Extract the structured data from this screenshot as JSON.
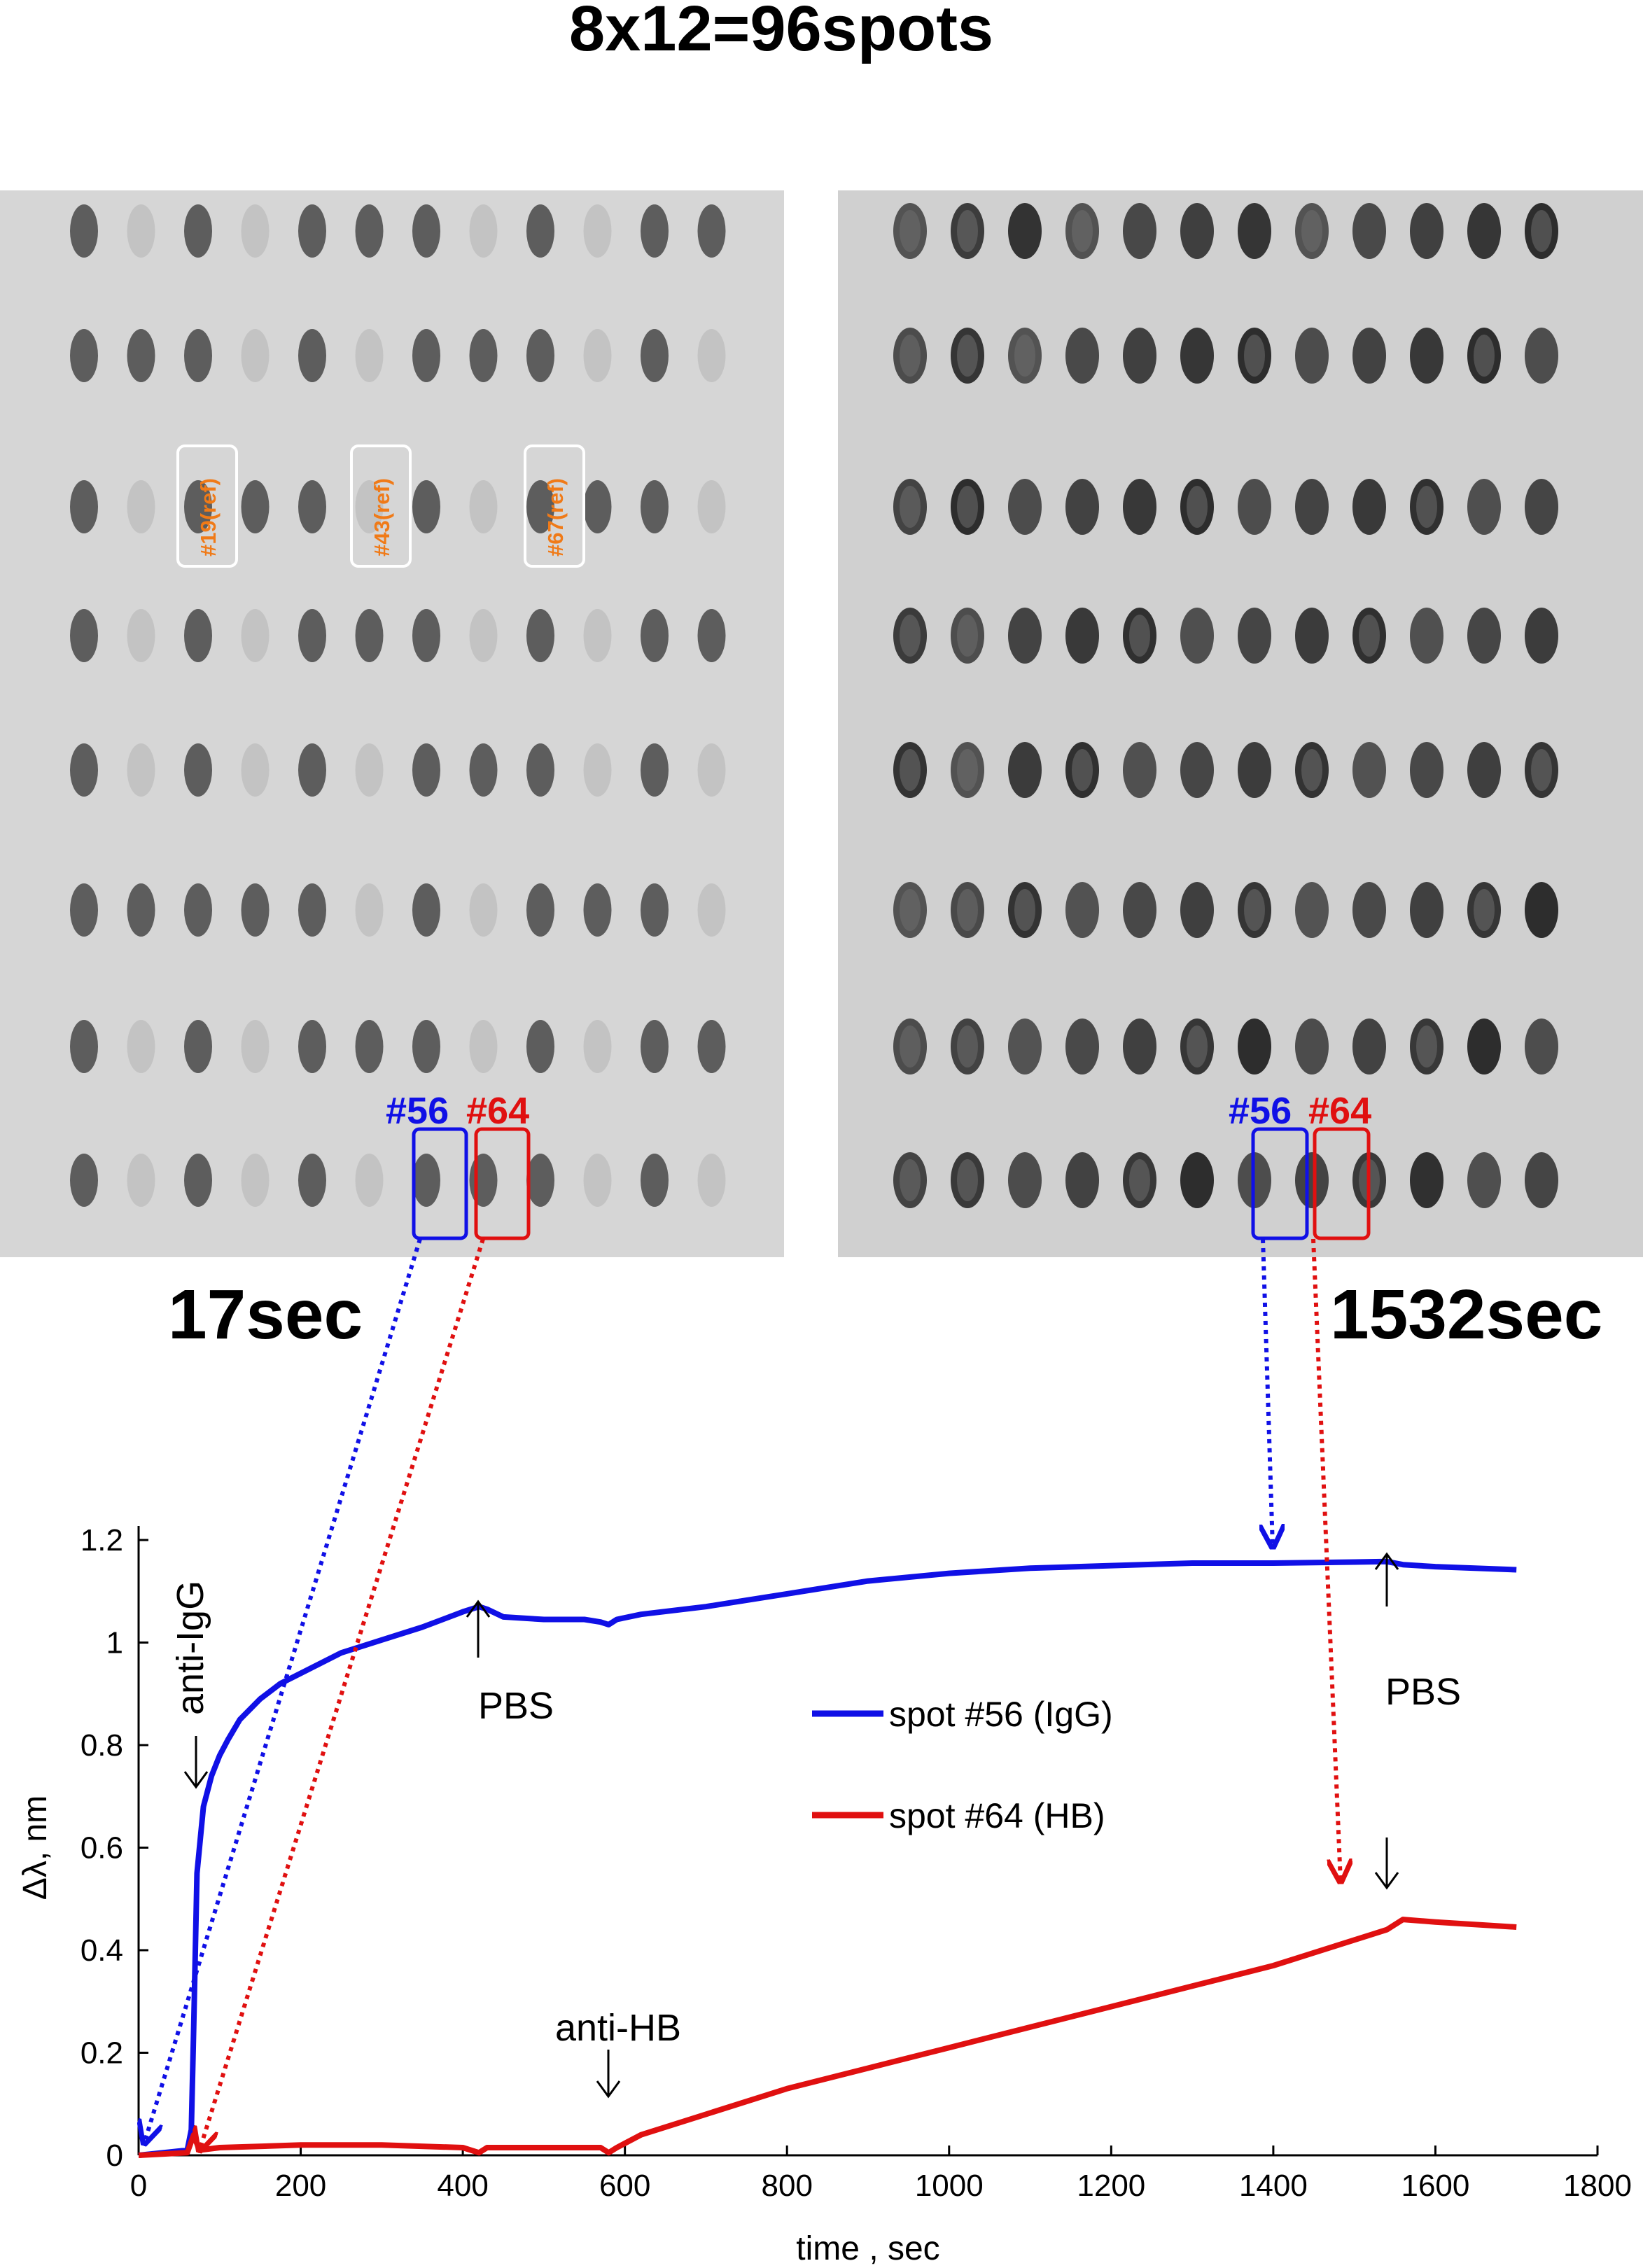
{
  "title": "8x12=96spots",
  "panels": {
    "left": {
      "time_label": "17sec",
      "spot_a": "#56",
      "spot_b": "#64",
      "ref_labels": [
        "#19(ref)",
        "#43(ref)",
        "#67(ref)"
      ]
    },
    "right": {
      "time_label": "1532sec",
      "spot_a": "#56",
      "spot_b": "#64"
    }
  },
  "colors": {
    "igg": "#1010e6",
    "hb": "#e01010",
    "ref": "#f07a17",
    "plate_bg": "#d4d4d4",
    "spot": "#2a2a2a"
  },
  "chart_data": {
    "type": "line",
    "xlabel": "time , sec",
    "ylabel": "Δλ, nm",
    "xlim": [
      0,
      1800
    ],
    "ylim": [
      0,
      1.25
    ],
    "xticks": [
      0,
      200,
      400,
      600,
      800,
      1000,
      1200,
      1400,
      1600,
      1800
    ],
    "yticks": [
      0,
      0.2,
      0.4,
      0.6,
      0.8,
      1,
      1.2
    ],
    "ytick_labels": [
      "0",
      "0.2",
      "0.4",
      "0.6",
      "0.8",
      "1",
      "1.2"
    ],
    "series": [
      {
        "name": "spot #56 (IgG)",
        "color": "#1010e6",
        "x": [
          0,
          60,
          65,
          68,
          72,
          80,
          90,
          100,
          110,
          125,
          150,
          175,
          200,
          250,
          300,
          350,
          400,
          420,
          430,
          450,
          500,
          550,
          570,
          580,
          590,
          620,
          700,
          800,
          900,
          1000,
          1100,
          1200,
          1300,
          1400,
          1500,
          1540,
          1560,
          1600,
          1700
        ],
        "y": [
          0,
          0.01,
          0.05,
          0.25,
          0.55,
          0.68,
          0.74,
          0.78,
          0.81,
          0.85,
          0.89,
          0.92,
          0.94,
          0.98,
          1.005,
          1.03,
          1.06,
          1.07,
          1.065,
          1.05,
          1.045,
          1.045,
          1.04,
          1.035,
          1.045,
          1.055,
          1.07,
          1.095,
          1.12,
          1.135,
          1.145,
          1.15,
          1.155,
          1.155,
          1.157,
          1.158,
          1.152,
          1.148,
          1.142
        ]
      },
      {
        "name": "spot #64 (HB)",
        "color": "#e01010",
        "x": [
          0,
          60,
          68,
          75,
          100,
          200,
          300,
          400,
          420,
          430,
          500,
          570,
          580,
          590,
          620,
          700,
          800,
          900,
          1000,
          1100,
          1200,
          1300,
          1400,
          1480,
          1520,
          1540,
          1560,
          1600,
          1700
        ],
        "y": [
          0,
          0.005,
          0.04,
          0.01,
          0.015,
          0.02,
          0.02,
          0.015,
          0.005,
          0.015,
          0.015,
          0.015,
          0.005,
          0.015,
          0.04,
          0.08,
          0.13,
          0.17,
          0.21,
          0.25,
          0.29,
          0.33,
          0.37,
          0.41,
          0.43,
          0.44,
          0.46,
          0.455,
          0.445
        ]
      }
    ],
    "annotations": [
      {
        "text": "anti-IgG",
        "x": 68,
        "arrow": "down"
      },
      {
        "text": "PBS",
        "x": 420,
        "arrow": "up"
      },
      {
        "text": "anti-HB",
        "x": 580,
        "arrow": "down"
      },
      {
        "text": "PBS",
        "x": 1540,
        "arrow": "up"
      },
      {
        "text": "",
        "x": 1540,
        "arrow": "down"
      }
    ],
    "legend": {
      "position": "center-right",
      "entries": [
        "spot #56 (IgG)",
        "spot #64 (HB)"
      ]
    }
  }
}
